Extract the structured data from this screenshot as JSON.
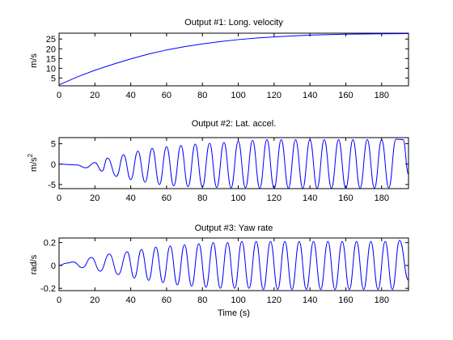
{
  "chart_data": [
    {
      "type": "line",
      "title": "Output #1: Long. velocity",
      "xlabel": "",
      "ylabel": "m/s",
      "xlim": [
        0,
        195
      ],
      "ylim": [
        1,
        28
      ],
      "xticks": [
        0,
        20,
        40,
        60,
        80,
        100,
        120,
        140,
        160,
        180
      ],
      "yticks": [
        5,
        10,
        15,
        20,
        25
      ],
      "grid": false,
      "series": [
        {
          "color": "#0000ff",
          "x": [
            0,
            10,
            20,
            30,
            40,
            50,
            60,
            70,
            80,
            90,
            100,
            110,
            120,
            130,
            140,
            150,
            160,
            170,
            180,
            195
          ],
          "y": [
            1.5,
            5.5,
            9.0,
            12.0,
            14.8,
            17.3,
            19.4,
            21.1,
            22.5,
            23.7,
            24.7,
            25.5,
            26.1,
            26.6,
            27.0,
            27.3,
            27.5,
            27.6,
            27.7,
            27.8
          ]
        }
      ]
    },
    {
      "type": "line",
      "title": "Output #2: Lat. accel.",
      "xlabel": "",
      "ylabel_base": "m/s",
      "ylabel_sup": "2",
      "xlim": [
        0,
        195
      ],
      "ylim": [
        -6,
        6.5
      ],
      "xticks": [
        0,
        20,
        40,
        60,
        80,
        100,
        120,
        140,
        160,
        180
      ],
      "yticks": [
        -5,
        0,
        5
      ],
      "grid": false,
      "series": [
        {
          "color": "#0000ff",
          "x": [
            0,
            10,
            15,
            20,
            24,
            27,
            32,
            36,
            40,
            44,
            48,
            52,
            56,
            60,
            64,
            68,
            72,
            76,
            80,
            84,
            88,
            92,
            96,
            100,
            104,
            108,
            112,
            116,
            120,
            124,
            128,
            132,
            136,
            140,
            144,
            148,
            152,
            156,
            160,
            164,
            168,
            172,
            176,
            180,
            184,
            188,
            192,
            195
          ],
          "y": [
            0,
            -0.2,
            -0.9,
            0.4,
            -1.7,
            1.5,
            -3.0,
            2.3,
            -3.8,
            3.2,
            -4.4,
            3.9,
            -5.0,
            4.3,
            -5.3,
            4.6,
            -5.5,
            4.9,
            -5.6,
            5.1,
            -5.7,
            5.3,
            -5.8,
            5.6,
            -5.8,
            5.8,
            -5.9,
            6.0,
            -5.9,
            6.0,
            -5.9,
            6.0,
            -5.9,
            6.0,
            -5.9,
            6.0,
            -5.9,
            6.0,
            -5.9,
            6.0,
            -5.9,
            6.0,
            -5.9,
            6.0,
            -5.8,
            6.1,
            6.0,
            -2.5
          ]
        }
      ]
    },
    {
      "type": "line",
      "title": "Output #3: Yaw rate",
      "xlabel": "Time (s)",
      "ylabel": "rad/s",
      "xlim": [
        0,
        195
      ],
      "ylim": [
        -0.22,
        0.24
      ],
      "xticks": [
        0,
        20,
        40,
        60,
        80,
        100,
        120,
        140,
        160,
        180
      ],
      "yticks": [
        -0.2,
        0,
        0.2
      ],
      "grid": false,
      "series": [
        {
          "color": "#0000ff",
          "x": [
            0,
            4,
            8,
            13,
            18,
            23,
            28,
            33,
            38,
            42,
            46,
            50,
            54,
            58,
            62,
            66,
            70,
            74,
            78,
            82,
            86,
            90,
            94,
            98,
            102,
            106,
            110,
            114,
            118,
            122,
            126,
            130,
            134,
            138,
            142,
            146,
            150,
            154,
            158,
            162,
            166,
            170,
            174,
            178,
            182,
            186,
            190,
            195
          ],
          "y": [
            0,
            0.02,
            0.03,
            -0.02,
            0.07,
            -0.05,
            0.1,
            -0.08,
            0.12,
            -0.11,
            0.14,
            -0.13,
            0.16,
            -0.15,
            0.17,
            -0.17,
            0.18,
            -0.18,
            0.19,
            -0.19,
            0.2,
            -0.2,
            0.2,
            -0.2,
            0.21,
            -0.2,
            0.21,
            -0.21,
            0.21,
            -0.21,
            0.21,
            -0.21,
            0.21,
            -0.21,
            0.21,
            -0.21,
            0.21,
            -0.21,
            0.21,
            -0.21,
            0.21,
            -0.21,
            0.21,
            -0.21,
            0.21,
            -0.21,
            0.22,
            -0.13
          ]
        }
      ]
    }
  ]
}
